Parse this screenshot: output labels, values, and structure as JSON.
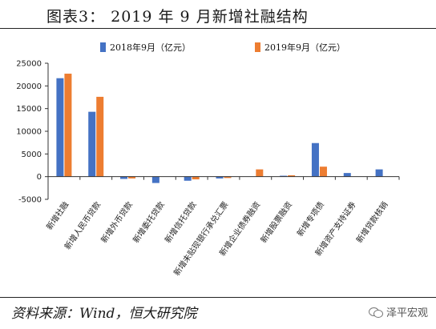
{
  "title": "图表3：   2019 年 9 月新增社融结构",
  "source": "资料来源：Wind，恒大研究院",
  "watermark": "泽平宏观",
  "colors": {
    "s2018": "#4472C4",
    "s2019": "#ED7D31"
  },
  "chart_data": {
    "type": "bar",
    "categories": [
      "新增社融",
      "新增人民币贷款",
      "新增外币贷款",
      "新增委托贷款",
      "新增信托贷款",
      "新增未贴现银行承兑汇票",
      "新增企业债券融资",
      "新增股票融资",
      "新增专项债",
      "新增资产支持证券",
      "新增贷款核销"
    ],
    "series": [
      {
        "name": "2018年9月（亿元）",
        "values": [
          21700,
          14300,
          -500,
          -1400,
          -900,
          -400,
          0,
          200,
          7400,
          800,
          1600
        ]
      },
      {
        "name": "2019年9月（亿元）",
        "values": [
          22700,
          17600,
          -400,
          0,
          -600,
          -300,
          1600,
          300,
          2200,
          0,
          0
        ]
      }
    ],
    "ylim": [
      -5000,
      25000
    ],
    "yticks": [
      "-5000",
      "0",
      "5000",
      "10000",
      "15000",
      "20000",
      "25000"
    ],
    "legend_position": "top",
    "grid": false
  }
}
